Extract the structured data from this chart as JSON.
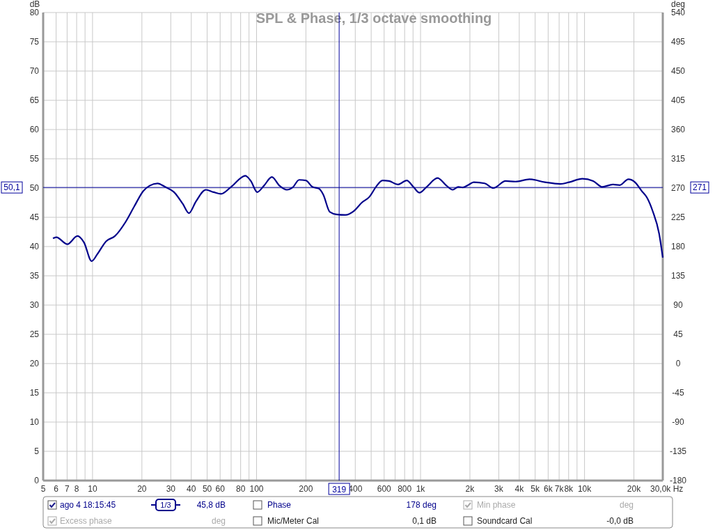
{
  "chart_data": {
    "type": "line",
    "title": "SPL & Phase, 1/3 octave smoothing",
    "ylabel": "dB",
    "y2label": "deg",
    "log": "x",
    "xlim": [
      5,
      30000
    ],
    "xticks": [
      5,
      6,
      7,
      8,
      {
        "value": 9,
        "label": null
      },
      10,
      20,
      30,
      40,
      50,
      60,
      {
        "value": 70,
        "label": null
      },
      80,
      {
        "value": 90,
        "label": null
      },
      100,
      200,
      {
        "value": 300,
        "label": null
      },
      400,
      {
        "value": 500,
        "label": null
      },
      600,
      {
        "value": 700,
        "label": null
      },
      800,
      {
        "value": 900,
        "label": null
      },
      {
        "value": 1000,
        "label": "1k"
      },
      {
        "value": 2000,
        "label": "2k"
      },
      {
        "value": 3000,
        "label": "3k"
      },
      {
        "value": 4000,
        "label": "4k"
      },
      {
        "value": 5000,
        "label": "5k"
      },
      {
        "value": 6000,
        "label": "6k"
      },
      {
        "value": 7000,
        "label": "7k"
      },
      {
        "value": 8000,
        "label": "8k"
      },
      {
        "value": 9000,
        "label": null
      },
      {
        "value": 10000,
        "label": "10k"
      },
      {
        "value": 20000,
        "label": "20k"
      },
      {
        "value": 30000,
        "label": "30,0k Hz"
      }
    ],
    "ylim": [
      0,
      80
    ],
    "yticks": [
      0,
      5,
      10,
      15,
      20,
      25,
      30,
      35,
      40,
      45,
      50,
      55,
      60,
      65,
      70,
      75,
      80
    ],
    "y2lim": [
      -180,
      540
    ],
    "y2ticks": [
      -180,
      -135,
      -90,
      -45,
      0,
      45,
      90,
      135,
      180,
      225,
      270,
      315,
      360,
      405,
      450,
      495,
      540
    ],
    "grid": true,
    "legend": "bottom",
    "ref_lines": [
      {
        "axis": "x",
        "value": 319,
        "label": "319",
        "color": "#00009c"
      },
      {
        "axis": "y",
        "value": 50.1,
        "label": "50,1",
        "color": "#00009c"
      }
    ],
    "annotations": [
      "1/3",
      "45,8 dB",
      "Phase",
      "178 deg",
      "Min phase",
      "deg",
      "Excess phase",
      "deg",
      "Mic/Meter Cal",
      "0,1 dB",
      "Soundcard Cal",
      "-0,0 dB",
      "271"
    ],
    "series": [
      {
        "name": "ago 4 18:15:45",
        "color": "#00008b",
        "x": [
          5.74,
          6.01,
          7.03,
          8.09,
          8.87,
          9.88,
          10.7,
          12.1,
          13.7,
          15.9,
          18.0,
          20.4,
          22.3,
          24.9,
          27.7,
          31.4,
          35.5,
          38.7,
          42.7,
          49.1,
          54.7,
          60.8,
          70.0,
          85.5,
          92.3,
          101,
          111,
          124,
          138,
          153,
          166,
          182,
          200,
          219,
          240,
          255,
          280,
          307,
          348,
          393,
          438,
          488,
          535,
          586,
          643,
          728,
          824,
          904,
          985,
          1090,
          1270,
          1440,
          1570,
          1700,
          1810,
          1950,
          2110,
          2460,
          2780,
          3300,
          3790,
          4620,
          5740,
          7120,
          8060,
          9700,
          11300,
          12800,
          14900,
          16400,
          18500,
          20300,
          22300,
          24100,
          26000,
          28500,
          30000
        ],
        "values": [
          41.4,
          41.6,
          40.4,
          41.8,
          40.7,
          37.5,
          38.7,
          40.9,
          41.8,
          44.2,
          46.9,
          49.5,
          50.4,
          50.8,
          50.2,
          49.3,
          47.3,
          45.7,
          47.7,
          49.7,
          49.3,
          49.0,
          50.2,
          52.1,
          51.2,
          49.3,
          50.4,
          51.9,
          50.4,
          49.7,
          50.1,
          51.4,
          51.3,
          50.2,
          49.9,
          48.9,
          45.9,
          45.5,
          45.4,
          46.1,
          47.5,
          48.5,
          50.2,
          51.3,
          51.2,
          50.6,
          51.3,
          50.2,
          49.2,
          50.2,
          51.7,
          50.4,
          49.7,
          50.2,
          50.1,
          50.5,
          51.0,
          50.8,
          50.0,
          51.2,
          51.1,
          51.5,
          51.0,
          50.7,
          51.0,
          51.6,
          51.2,
          50.2,
          50.6,
          50.5,
          51.5,
          51.0,
          49.5,
          48.3,
          46.1,
          42.2,
          38.1
        ]
      }
    ]
  }
}
